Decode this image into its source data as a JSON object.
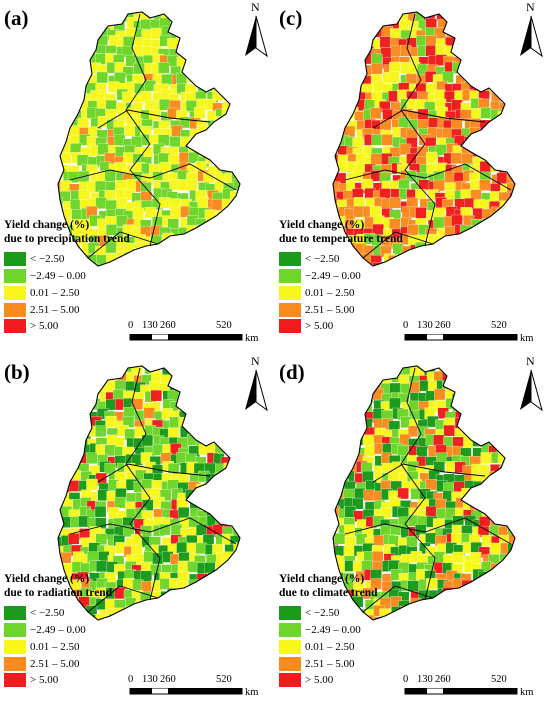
{
  "panels": [
    {
      "id": "a",
      "label": "(a)",
      "legend_title": [
        "Yield change (%)",
        "due to precipitation trend"
      ],
      "palette": [
        2,
        3,
        3,
        2,
        3,
        2,
        4,
        3,
        3,
        2,
        3,
        2
      ]
    },
    {
      "id": "c",
      "label": "(c)",
      "legend_title": [
        "Yield change (%)",
        "due to temperature trend"
      ],
      "palette": [
        4,
        3,
        5,
        4,
        2,
        4,
        5,
        3,
        4,
        5,
        2,
        3
      ]
    },
    {
      "id": "b",
      "label": "(b)",
      "legend_title": [
        "Yield change (%)",
        "due to radiation trend"
      ],
      "palette": [
        2,
        1,
        3,
        4,
        2,
        1,
        3,
        2,
        5,
        1,
        2,
        3
      ]
    },
    {
      "id": "d",
      "label": "(d)",
      "legend_title": [
        "Yield change (%)",
        "due to climate trend"
      ],
      "palette": [
        1,
        2,
        4,
        3,
        1,
        5,
        2,
        3,
        1,
        4,
        2,
        3
      ]
    }
  ],
  "legend_classes": [
    {
      "label": "< −2.50",
      "color": "#1a9b1a"
    },
    {
      "label": "−2.49 – 0.00",
      "color": "#6ed62a"
    },
    {
      "label": "0.01 – 2.50",
      "color": "#f7f71b"
    },
    {
      "label": "2.51 – 5.00",
      "color": "#f98a1e"
    },
    {
      "label": "> 5.00",
      "color": "#ef1d1d"
    }
  ],
  "north_label": "N",
  "scale_ticks": [
    "0",
    "130",
    "260",
    "520"
  ],
  "scale_unit": "km"
}
